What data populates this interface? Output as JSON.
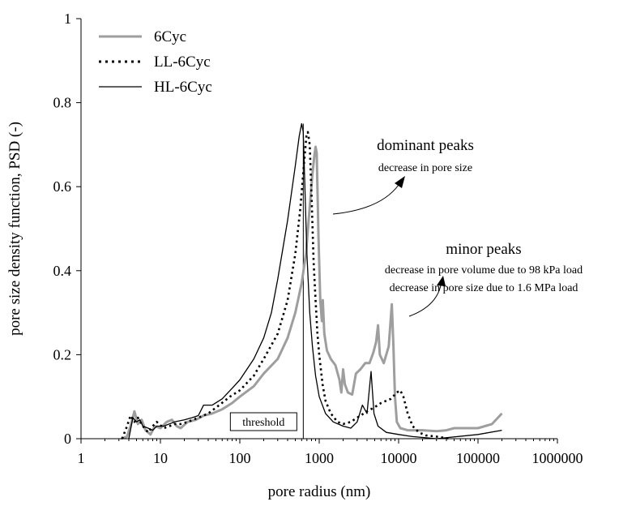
{
  "chart_data": {
    "type": "line",
    "xlabel": "pore radius (nm)",
    "ylabel": "pore size density function, PSD (-)",
    "x_scale": "log",
    "xlim": [
      1,
      1000000
    ],
    "ylim": [
      0,
      1
    ],
    "x_ticks": [
      "1",
      "10",
      "100",
      "1000",
      "10000",
      "100000",
      "1000000"
    ],
    "y_ticks": [
      "0",
      "0.2",
      "0.4",
      "0.6",
      "0.8",
      "1"
    ],
    "legend_position": "top-left",
    "series": [
      {
        "name": "6Cyc",
        "color": "#9e9e9e",
        "style": "solid-thick",
        "points": [
          [
            3.2,
            0.0
          ],
          [
            3.8,
            0.005
          ],
          [
            4.2,
            0.03
          ],
          [
            4.7,
            0.065
          ],
          [
            5.2,
            0.035
          ],
          [
            5.8,
            0.045
          ],
          [
            6.5,
            0.02
          ],
          [
            7.5,
            0.01
          ],
          [
            8.5,
            0.03
          ],
          [
            10,
            0.025
          ],
          [
            12,
            0.04
          ],
          [
            14,
            0.045
          ],
          [
            16,
            0.03
          ],
          [
            18,
            0.025
          ],
          [
            22,
            0.04
          ],
          [
            28,
            0.045
          ],
          [
            35,
            0.055
          ],
          [
            45,
            0.06
          ],
          [
            60,
            0.07
          ],
          [
            80,
            0.085
          ],
          [
            100,
            0.1
          ],
          [
            150,
            0.125
          ],
          [
            200,
            0.155
          ],
          [
            300,
            0.19
          ],
          [
            400,
            0.24
          ],
          [
            500,
            0.3
          ],
          [
            600,
            0.37
          ],
          [
            680,
            0.44
          ],
          [
            750,
            0.54
          ],
          [
            820,
            0.63
          ],
          [
            870,
            0.675
          ],
          [
            900,
            0.695
          ],
          [
            930,
            0.68
          ],
          [
            980,
            0.48
          ],
          [
            1030,
            0.33
          ],
          [
            1080,
            0.28
          ],
          [
            1110,
            0.33
          ],
          [
            1160,
            0.25
          ],
          [
            1250,
            0.21
          ],
          [
            1400,
            0.19
          ],
          [
            1600,
            0.175
          ],
          [
            1800,
            0.14
          ],
          [
            1900,
            0.11
          ],
          [
            2000,
            0.165
          ],
          [
            2100,
            0.13
          ],
          [
            2300,
            0.11
          ],
          [
            2600,
            0.105
          ],
          [
            2900,
            0.155
          ],
          [
            3300,
            0.165
          ],
          [
            3800,
            0.18
          ],
          [
            4300,
            0.18
          ],
          [
            4800,
            0.205
          ],
          [
            5200,
            0.23
          ],
          [
            5500,
            0.27
          ],
          [
            5800,
            0.2
          ],
          [
            6500,
            0.18
          ],
          [
            7500,
            0.22
          ],
          [
            8200,
            0.32
          ],
          [
            8600,
            0.22
          ],
          [
            9000,
            0.1
          ],
          [
            9500,
            0.04
          ],
          [
            10500,
            0.025
          ],
          [
            13000,
            0.02
          ],
          [
            20000,
            0.02
          ],
          [
            30000,
            0.018
          ],
          [
            40000,
            0.02
          ],
          [
            50000,
            0.025
          ],
          [
            70000,
            0.025
          ],
          [
            100000,
            0.025
          ],
          [
            150000,
            0.035
          ],
          [
            200000,
            0.06
          ]
        ]
      },
      {
        "name": "LL-6Cyc",
        "color": "#000000",
        "style": "dotted",
        "points": [
          [
            3.3,
            0.0
          ],
          [
            3.8,
            0.03
          ],
          [
            4.2,
            0.055
          ],
          [
            4.7,
            0.04
          ],
          [
            5.2,
            0.05
          ],
          [
            6,
            0.03
          ],
          [
            7,
            0.015
          ],
          [
            8,
            0.03
          ],
          [
            9,
            0.04
          ],
          [
            11,
            0.025
          ],
          [
            13,
            0.03
          ],
          [
            15,
            0.035
          ],
          [
            18,
            0.035
          ],
          [
            22,
            0.04
          ],
          [
            30,
            0.05
          ],
          [
            40,
            0.06
          ],
          [
            55,
            0.08
          ],
          [
            75,
            0.1
          ],
          [
            100,
            0.115
          ],
          [
            150,
            0.15
          ],
          [
            200,
            0.19
          ],
          [
            300,
            0.25
          ],
          [
            400,
            0.33
          ],
          [
            500,
            0.44
          ],
          [
            580,
            0.55
          ],
          [
            640,
            0.65
          ],
          [
            690,
            0.72
          ],
          [
            720,
            0.73
          ],
          [
            760,
            0.7
          ],
          [
            800,
            0.58
          ],
          [
            850,
            0.42
          ],
          [
            900,
            0.33
          ],
          [
            950,
            0.25
          ],
          [
            1000,
            0.2
          ],
          [
            1100,
            0.13
          ],
          [
            1200,
            0.09
          ],
          [
            1400,
            0.06
          ],
          [
            1700,
            0.04
          ],
          [
            2000,
            0.035
          ],
          [
            2500,
            0.04
          ],
          [
            3000,
            0.05
          ],
          [
            4000,
            0.065
          ],
          [
            5000,
            0.075
          ],
          [
            6000,
            0.085
          ],
          [
            8000,
            0.095
          ],
          [
            9500,
            0.11
          ],
          [
            10500,
            0.115
          ],
          [
            11500,
            0.1
          ],
          [
            13000,
            0.06
          ],
          [
            15000,
            0.03
          ],
          [
            18000,
            0.015
          ],
          [
            22000,
            0.008
          ],
          [
            30000,
            0.005
          ],
          [
            45000,
            0.0
          ]
        ]
      },
      {
        "name": "HL-6Cyc",
        "color": "#000000",
        "style": "solid-thin",
        "points": [
          [
            4,
            0.0
          ],
          [
            4.5,
            0.05
          ],
          [
            5,
            0.04
          ],
          [
            5.5,
            0.045
          ],
          [
            6,
            0.03
          ],
          [
            7,
            0.025
          ],
          [
            8,
            0.02
          ],
          [
            9,
            0.03
          ],
          [
            11,
            0.03
          ],
          [
            15,
            0.04
          ],
          [
            20,
            0.045
          ],
          [
            25,
            0.05
          ],
          [
            30,
            0.055
          ],
          [
            35,
            0.08
          ],
          [
            45,
            0.08
          ],
          [
            60,
            0.095
          ],
          [
            80,
            0.12
          ],
          [
            100,
            0.14
          ],
          [
            150,
            0.19
          ],
          [
            200,
            0.24
          ],
          [
            250,
            0.3
          ],
          [
            300,
            0.38
          ],
          [
            400,
            0.52
          ],
          [
            500,
            0.65
          ],
          [
            560,
            0.72
          ],
          [
            600,
            0.75
          ],
          [
            630,
            0.73
          ],
          [
            660,
            0.6
          ],
          [
            700,
            0.44
          ],
          [
            760,
            0.3
          ],
          [
            820,
            0.22
          ],
          [
            900,
            0.15
          ],
          [
            1000,
            0.1
          ],
          [
            1200,
            0.06
          ],
          [
            1500,
            0.04
          ],
          [
            2000,
            0.03
          ],
          [
            2500,
            0.025
          ],
          [
            3000,
            0.04
          ],
          [
            3500,
            0.08
          ],
          [
            4000,
            0.06
          ],
          [
            4500,
            0.16
          ],
          [
            4900,
            0.06
          ],
          [
            5500,
            0.03
          ],
          [
            7000,
            0.015
          ],
          [
            10000,
            0.01
          ],
          [
            15000,
            0.005
          ],
          [
            30000,
            0.0
          ],
          [
            100000,
            0.01
          ],
          [
            200000,
            0.02
          ]
        ]
      }
    ],
    "annotations": {
      "dominant_title": "dominant peaks",
      "dominant_sub": "decrease in pore size",
      "minor_title": "minor peaks",
      "minor_sub1": "decrease in pore volume due to 98 kPa load",
      "minor_sub2": "decrease in pore size due to 1.6 MPa load",
      "threshold_label": "threshold",
      "threshold_x": 630
    }
  }
}
